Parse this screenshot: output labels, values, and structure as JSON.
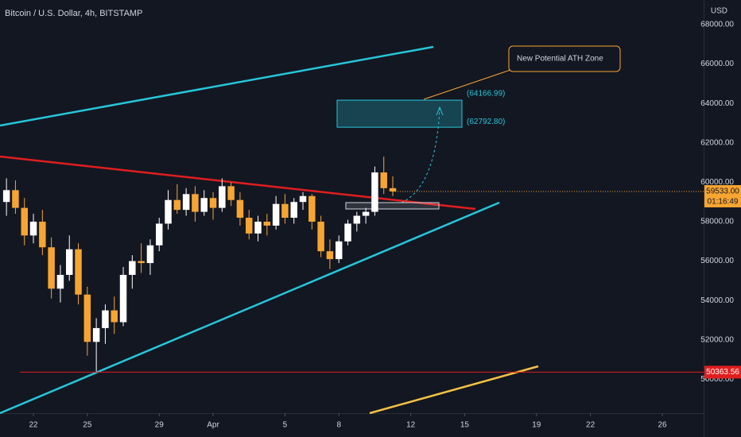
{
  "chart_data": {
    "type": "candlestick",
    "title": "Bitcoin / U.S. Dollar, 4h, BITSTAMP",
    "y_axis_label": "USD",
    "x": [
      -1.5,
      -1,
      -0.5,
      0,
      0.5,
      1,
      1.5,
      2,
      2.5,
      3,
      3.5,
      4,
      4.5,
      5,
      5.5,
      6,
      6.5,
      7,
      7.5,
      8,
      8.5,
      9,
      9.5,
      10,
      10.5,
      11,
      11.5,
      12,
      12.5,
      13,
      13.5,
      14,
      14.5,
      15,
      15.5,
      16,
      16.5,
      17,
      17.5,
      18,
      18.5,
      19,
      19.5,
      20
    ],
    "open": [
      59000,
      59600,
      58700,
      57300,
      58000,
      56700,
      54600,
      55300,
      56600,
      54300,
      51900,
      52600,
      53500,
      52900,
      55300,
      56000,
      55900,
      56800,
      57900,
      59100,
      58600,
      59400,
      58500,
      59200,
      58700,
      59800,
      59100,
      58200,
      57400,
      58000,
      57800,
      58900,
      58200,
      59000,
      59300,
      58000,
      56500,
      56100,
      57000,
      57900,
      58300,
      58500,
      60500,
      59700
    ],
    "high": [
      60200,
      60100,
      59200,
      58400,
      58600,
      57200,
      55800,
      57300,
      56900,
      54700,
      53100,
      53800,
      54200,
      55700,
      56300,
      56900,
      57100,
      58200,
      59600,
      59900,
      59700,
      59800,
      59600,
      59500,
      60200,
      60000,
      59500,
      58600,
      58300,
      58400,
      59300,
      59400,
      59200,
      59500,
      59400,
      58300,
      57100,
      57300,
      58100,
      58500,
      58700,
      60800,
      61300,
      60300
    ],
    "low": [
      58300,
      58400,
      56800,
      56900,
      56300,
      54100,
      53900,
      55000,
      53800,
      51200,
      50400,
      51800,
      52300,
      52700,
      54600,
      55400,
      55300,
      56500,
      57600,
      58400,
      58300,
      58000,
      58300,
      58100,
      58500,
      58800,
      57800,
      57100,
      57000,
      57300,
      57600,
      57900,
      57900,
      58600,
      57600,
      56200,
      55600,
      55900,
      56800,
      57500,
      57900,
      58300,
      59400,
      59300
    ],
    "close": [
      59600,
      58700,
      57300,
      58000,
      56700,
      54600,
      55300,
      56600,
      54300,
      51900,
      52600,
      53500,
      52900,
      55300,
      56000,
      55900,
      56800,
      57900,
      59100,
      58600,
      59400,
      58500,
      59200,
      58700,
      59800,
      59100,
      58200,
      57400,
      58000,
      57800,
      58900,
      58200,
      59000,
      59300,
      58000,
      56500,
      56100,
      57000,
      57900,
      58300,
      58500,
      60500,
      59700,
      59533
    ],
    "up_color": "#ffffff",
    "down_color": "#f7a531",
    "xlim": [
      -1.86,
      37.3
    ],
    "xticks": [
      {
        "value": 0,
        "label": "22"
      },
      {
        "value": 3,
        "label": "25"
      },
      {
        "value": 7,
        "label": "29"
      },
      {
        "value": 10,
        "label": "Apr"
      },
      {
        "value": 14,
        "label": "5"
      },
      {
        "value": 17,
        "label": "8"
      },
      {
        "value": 21,
        "label": "12"
      },
      {
        "value": 24,
        "label": "15"
      },
      {
        "value": 28,
        "label": "19"
      },
      {
        "value": 31,
        "label": "22"
      },
      {
        "value": 35,
        "label": "26"
      }
    ],
    "ylim": [
      48282,
      69250
    ],
    "yticks": [
      {
        "value": 50000,
        "label": "50000.00"
      },
      {
        "value": 52000,
        "label": "52000.00"
      },
      {
        "value": 54000,
        "label": "54000.00"
      },
      {
        "value": 56000,
        "label": "56000.00"
      },
      {
        "value": 58000,
        "label": "58000.00"
      },
      {
        "value": 60000,
        "label": "60000.00"
      },
      {
        "value": 62000,
        "label": "62000.00"
      },
      {
        "value": 64000,
        "label": "64000.00"
      },
      {
        "value": 66000,
        "label": "66000.00"
      },
      {
        "value": 68000,
        "label": "68000.00"
      }
    ],
    "zone": {
      "top": {
        "value": 64166.99,
        "label": "(64166.99)"
      },
      "bottom": {
        "value": 62792.8,
        "label": "(62792.80)"
      }
    },
    "annotation": "New Potential ATH Zone",
    "last_price": {
      "value": 59533,
      "label": "59533.00"
    },
    "countdown": "01:16:49",
    "level": {
      "value": 50363.56,
      "label": "50363.56"
    }
  }
}
